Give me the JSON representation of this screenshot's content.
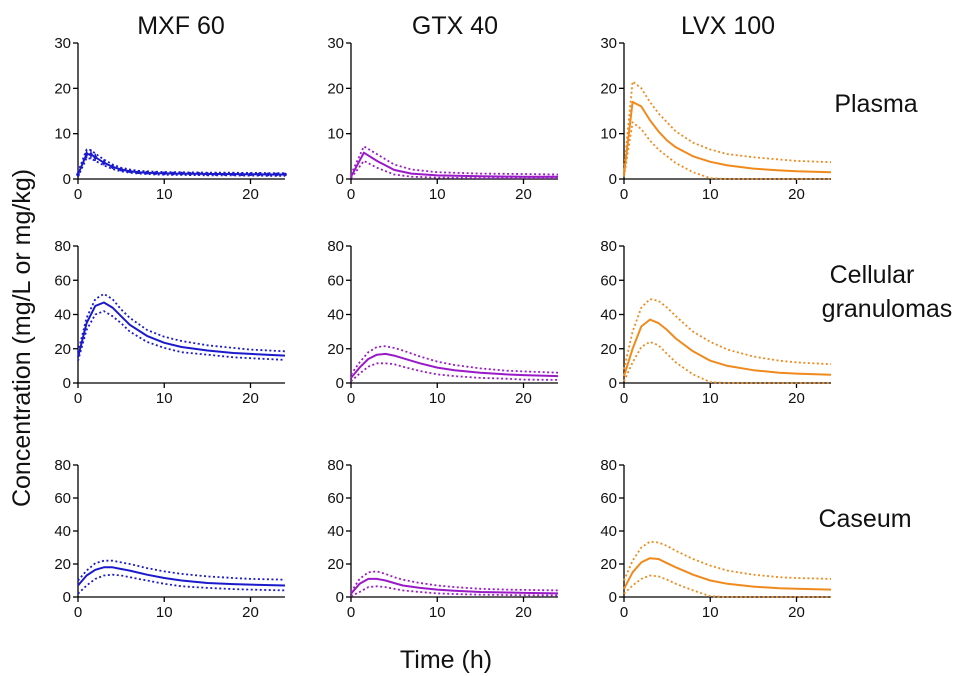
{
  "figure": {
    "y_axis_title": "Concentration (mg/L or mg/kg)",
    "x_axis_title": "Time (h)",
    "columns": [
      "MXF 60",
      "GTX 40",
      "LVX 100"
    ],
    "rows": [
      [
        "Plasma"
      ],
      [
        "Cellular",
        "granulomas"
      ],
      [
        "Caseum"
      ]
    ]
  },
  "colors": {
    "MXF 60": "#1a1acc",
    "GTX 40": "#9a1ac8",
    "LVX 100": "#f08a1c"
  },
  "chart_data": [
    {
      "type": "line",
      "drug": "MXF 60",
      "compartment": "Plasma",
      "xlim": [
        0,
        24
      ],
      "ylim": [
        0,
        30
      ],
      "xticks": [
        0,
        10,
        20
      ],
      "yticks": [
        0,
        10,
        20,
        30
      ],
      "markers": true,
      "x": [
        0,
        1,
        1.5,
        2,
        3,
        4,
        5,
        6,
        7,
        8,
        9,
        10,
        11,
        12,
        13,
        14,
        15,
        16,
        17,
        18,
        19,
        20,
        21,
        22,
        23,
        24
      ],
      "series": [
        {
          "name": "upper",
          "style": "dotted",
          "values": [
            1.5,
            6.5,
            6.4,
            5.6,
            4.3,
            3.2,
            2.5,
            2.1,
            1.8,
            1.7,
            1.6,
            1.55,
            1.5,
            1.5,
            1.45,
            1.45,
            1.4,
            1.4,
            1.4,
            1.4,
            1.35,
            1.35,
            1.35,
            1.3,
            1.3,
            1.3
          ]
        },
        {
          "name": "median",
          "style": "solid",
          "values": [
            1.0,
            5.5,
            5.4,
            4.8,
            3.6,
            2.7,
            2.1,
            1.7,
            1.5,
            1.4,
            1.3,
            1.25,
            1.2,
            1.2,
            1.15,
            1.15,
            1.1,
            1.1,
            1.1,
            1.1,
            1.05,
            1.05,
            1.05,
            1.0,
            1.0,
            1.0
          ]
        },
        {
          "name": "lower",
          "style": "dotted",
          "values": [
            0.5,
            4.6,
            4.5,
            4.0,
            3.0,
            2.2,
            1.7,
            1.4,
            1.2,
            1.1,
            1.0,
            0.95,
            0.9,
            0.9,
            0.85,
            0.85,
            0.8,
            0.8,
            0.8,
            0.8,
            0.75,
            0.75,
            0.75,
            0.7,
            0.7,
            0.7
          ]
        }
      ]
    },
    {
      "type": "line",
      "drug": "GTX 40",
      "compartment": "Plasma",
      "xlim": [
        0,
        24
      ],
      "ylim": [
        0,
        30
      ],
      "xticks": [
        0,
        10,
        20
      ],
      "yticks": [
        0,
        10,
        20,
        30
      ],
      "markers": false,
      "x": [
        0,
        1.5,
        3,
        5,
        7,
        10,
        15,
        20,
        24
      ],
      "series": [
        {
          "name": "upper",
          "style": "dotted",
          "values": [
            1.0,
            7.2,
            5.5,
            3.2,
            2.1,
            1.5,
            1.2,
            1.1,
            1.0
          ]
        },
        {
          "name": "median",
          "style": "solid",
          "values": [
            0.5,
            5.8,
            4.0,
            2.0,
            1.2,
            0.8,
            0.6,
            0.5,
            0.5
          ]
        },
        {
          "name": "lower",
          "style": "dotted",
          "values": [
            0.2,
            4.0,
            2.5,
            1.0,
            0.5,
            0.3,
            0.2,
            0.2,
            0.2
          ]
        }
      ]
    },
    {
      "type": "line",
      "drug": "LVX 100",
      "compartment": "Plasma",
      "xlim": [
        0,
        24
      ],
      "ylim": [
        0,
        30
      ],
      "xticks": [
        0,
        10,
        20
      ],
      "yticks": [
        0,
        10,
        20,
        30
      ],
      "markers": false,
      "x": [
        0,
        1,
        2,
        3,
        4,
        5,
        6,
        8,
        10,
        12,
        15,
        18,
        20,
        24
      ],
      "series": [
        {
          "name": "upper",
          "style": "dotted",
          "values": [
            2,
            21.5,
            20,
            17,
            14.5,
            12.5,
            10.5,
            8.0,
            6.5,
            5.5,
            4.8,
            4.3,
            4.0,
            3.7
          ]
        },
        {
          "name": "median",
          "style": "solid",
          "values": [
            1,
            17,
            16,
            13,
            10.5,
            8.5,
            7.0,
            5.0,
            3.8,
            3.0,
            2.3,
            1.9,
            1.7,
            1.5
          ]
        },
        {
          "name": "lower",
          "style": "dotted",
          "values": [
            0.5,
            12.5,
            11,
            8.5,
            6.5,
            5.0,
            3.5,
            1.5,
            0.2,
            0,
            0,
            0,
            0,
            0
          ]
        }
      ]
    },
    {
      "type": "line",
      "drug": "MXF 60",
      "compartment": "Cellular granulomas",
      "xlim": [
        0,
        24
      ],
      "ylim": [
        0,
        80
      ],
      "xticks": [
        0,
        10,
        20
      ],
      "yticks": [
        0,
        20,
        40,
        60,
        80
      ],
      "markers": false,
      "x": [
        0,
        1,
        2,
        3,
        4,
        5,
        6,
        8,
        10,
        12,
        15,
        18,
        20,
        24
      ],
      "series": [
        {
          "name": "upper",
          "style": "dotted",
          "values": [
            18,
            38,
            49,
            52,
            49,
            43,
            38,
            31,
            27,
            24.5,
            22,
            20.5,
            19.5,
            18.5
          ]
        },
        {
          "name": "median",
          "style": "solid",
          "values": [
            15,
            35,
            45,
            47,
            44,
            39,
            34,
            27.5,
            23.5,
            21,
            19,
            17.5,
            17,
            16
          ]
        },
        {
          "name": "lower",
          "style": "dotted",
          "values": [
            13,
            31,
            40,
            42,
            39,
            35,
            30,
            24,
            20.5,
            18,
            16.5,
            15,
            14.5,
            13.5
          ]
        }
      ]
    },
    {
      "type": "line",
      "drug": "GTX 40",
      "compartment": "Cellular granulomas",
      "xlim": [
        0,
        24
      ],
      "ylim": [
        0,
        80
      ],
      "xticks": [
        0,
        10,
        20
      ],
      "yticks": [
        0,
        20,
        40,
        60,
        80
      ],
      "markers": false,
      "x": [
        0,
        1,
        2,
        3,
        4,
        5,
        6,
        8,
        10,
        12,
        15,
        18,
        20,
        24
      ],
      "series": [
        {
          "name": "upper",
          "style": "dotted",
          "values": [
            5,
            12,
            18,
            21,
            21.5,
            20.5,
            19,
            15.5,
            12.5,
            10.5,
            8.5,
            7.2,
            6.8,
            6.0
          ]
        },
        {
          "name": "median",
          "style": "solid",
          "values": [
            3,
            9,
            14,
            16.5,
            17,
            16,
            14.5,
            11.5,
            9.0,
            7.5,
            6.0,
            5.0,
            4.6,
            4.0
          ]
        },
        {
          "name": "lower",
          "style": "dotted",
          "values": [
            1,
            5.5,
            9.5,
            11.5,
            11.5,
            11,
            9.5,
            7.0,
            5.0,
            4.0,
            3.0,
            2.5,
            2.0,
            1.8
          ]
        }
      ]
    },
    {
      "type": "line",
      "drug": "LVX 100",
      "compartment": "Cellular granulomas",
      "xlim": [
        0,
        24
      ],
      "ylim": [
        0,
        80
      ],
      "xticks": [
        0,
        10,
        20
      ],
      "yticks": [
        0,
        20,
        40,
        60,
        80
      ],
      "markers": false,
      "x": [
        0,
        1,
        2,
        3,
        4,
        5,
        6,
        8,
        10,
        12,
        15,
        18,
        20,
        24
      ],
      "series": [
        {
          "name": "upper",
          "style": "dotted",
          "values": [
            8,
            30,
            44,
            49,
            48,
            44,
            39,
            30,
            24,
            19.5,
            15.5,
            13,
            12,
            11
          ]
        },
        {
          "name": "median",
          "style": "solid",
          "values": [
            4,
            20,
            33,
            37,
            35,
            31,
            26,
            18.5,
            13,
            10,
            7.5,
            6.0,
            5.5,
            4.8
          ]
        },
        {
          "name": "lower",
          "style": "dotted",
          "values": [
            1,
            12,
            21,
            24,
            22,
            17,
            12,
            5,
            0.5,
            0,
            0,
            0,
            0,
            0
          ]
        }
      ]
    },
    {
      "type": "line",
      "drug": "MXF 60",
      "compartment": "Caseum",
      "xlim": [
        0,
        24
      ],
      "ylim": [
        0,
        80
      ],
      "xticks": [
        0,
        10,
        20
      ],
      "yticks": [
        0,
        20,
        40,
        60,
        80
      ],
      "markers": false,
      "x": [
        0,
        1,
        2,
        3,
        4,
        5,
        6,
        8,
        10,
        12,
        15,
        18,
        20,
        24
      ],
      "series": [
        {
          "name": "upper",
          "style": "dotted",
          "values": [
            10,
            16,
            20.5,
            22,
            22,
            21,
            20,
            17.5,
            15.5,
            14,
            12.5,
            11.5,
            11,
            10.5
          ]
        },
        {
          "name": "median",
          "style": "solid",
          "values": [
            7,
            13,
            16.5,
            18,
            18,
            17,
            16,
            13.5,
            11.5,
            10,
            8.5,
            7.8,
            7.5,
            7.0
          ]
        },
        {
          "name": "lower",
          "style": "dotted",
          "values": [
            2,
            7,
            11,
            13,
            13.5,
            13,
            12,
            10,
            8,
            6.5,
            5.5,
            4.8,
            4.5,
            4.0
          ]
        }
      ]
    },
    {
      "type": "line",
      "drug": "GTX 40",
      "compartment": "Caseum",
      "xlim": [
        0,
        24
      ],
      "ylim": [
        0,
        80
      ],
      "xticks": [
        0,
        10,
        20
      ],
      "yticks": [
        0,
        20,
        40,
        60,
        80
      ],
      "markers": false,
      "x": [
        0,
        1,
        2,
        3,
        4,
        5,
        6,
        8,
        10,
        12,
        15,
        18,
        20,
        24
      ],
      "series": [
        {
          "name": "upper",
          "style": "dotted",
          "values": [
            3,
            11,
            15,
            15.5,
            14,
            12,
            10.5,
            8.5,
            7,
            6,
            5,
            4.5,
            4.3,
            4.0
          ]
        },
        {
          "name": "median",
          "style": "solid",
          "values": [
            2,
            8,
            11,
            11,
            10,
            8.5,
            7,
            5.5,
            4.5,
            3.8,
            3.0,
            2.7,
            2.5,
            2.2
          ]
        },
        {
          "name": "lower",
          "style": "dotted",
          "values": [
            0.5,
            3,
            6,
            6.5,
            6,
            5,
            4,
            3,
            2.2,
            1.8,
            1.4,
            1.2,
            1.1,
            1.0
          ]
        }
      ]
    },
    {
      "type": "line",
      "drug": "LVX 100",
      "compartment": "Caseum",
      "xlim": [
        0,
        24
      ],
      "ylim": [
        0,
        80
      ],
      "xticks": [
        0,
        10,
        20
      ],
      "yticks": [
        0,
        20,
        40,
        60,
        80
      ],
      "markers": false,
      "x": [
        0,
        1,
        2,
        3,
        4,
        5,
        6,
        8,
        10,
        12,
        15,
        18,
        20,
        24
      ],
      "series": [
        {
          "name": "upper",
          "style": "dotted",
          "values": [
            10,
            22,
            30,
            33.5,
            33,
            31,
            28,
            23,
            19,
            16,
            13.5,
            12,
            11.5,
            11
          ]
        },
        {
          "name": "median",
          "style": "solid",
          "values": [
            5,
            15,
            21,
            23.5,
            23,
            20.5,
            18,
            13.5,
            10,
            8,
            6.3,
            5.3,
            5.0,
            4.5
          ]
        },
        {
          "name": "lower",
          "style": "dotted",
          "values": [
            2,
            7,
            11,
            13,
            12.5,
            10.5,
            8,
            4,
            0.5,
            0,
            0,
            0,
            0,
            0
          ]
        }
      ]
    }
  ]
}
